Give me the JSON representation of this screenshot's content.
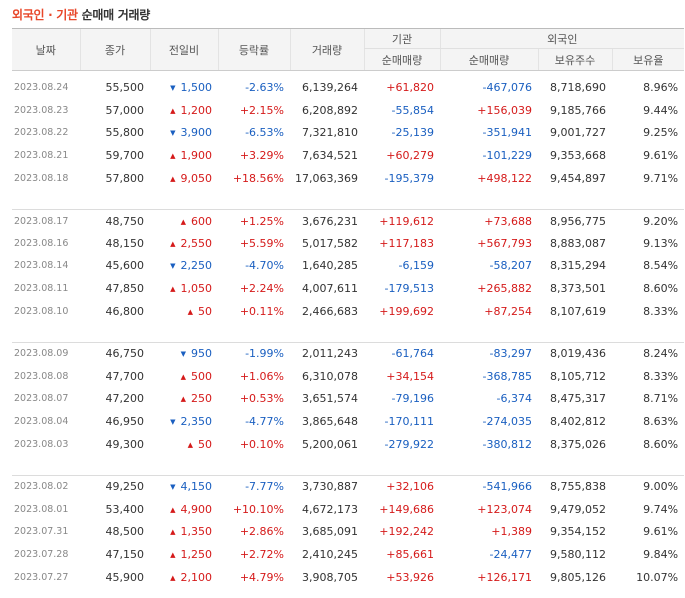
{
  "title": {
    "part1": "외국인",
    "sep": "·",
    "part2": "기관",
    "rest": "순매매 거래량"
  },
  "headers": {
    "date": "날짜",
    "close": "종가",
    "change": "전일비",
    "rate": "등락률",
    "volume": "거래량",
    "inst_group": "기관",
    "inst_net": "순매매량",
    "foreign_group": "외국인",
    "foreign_net": "순매매량",
    "foreign_hold": "보유주수",
    "foreign_ratio": "보유율"
  },
  "colors": {
    "up": "#d51a1a",
    "down": "#1a5fc0",
    "accent": "#e8472a"
  },
  "groups": [
    {
      "rows": [
        {
          "date": "2023.08.24",
          "close": "55,500",
          "dir": "down",
          "change": "1,500",
          "rate": "-2.63%",
          "volume": "6,139,264",
          "inst": "+61,820",
          "foreign": "-467,076",
          "hold": "8,718,690",
          "ratio": "8.96%"
        },
        {
          "date": "2023.08.23",
          "close": "57,000",
          "dir": "up",
          "change": "1,200",
          "rate": "+2.15%",
          "volume": "6,208,892",
          "inst": "-55,854",
          "foreign": "+156,039",
          "hold": "9,185,766",
          "ratio": "9.44%"
        },
        {
          "date": "2023.08.22",
          "close": "55,800",
          "dir": "down",
          "change": "3,900",
          "rate": "-6.53%",
          "volume": "7,321,810",
          "inst": "-25,139",
          "foreign": "-351,941",
          "hold": "9,001,727",
          "ratio": "9.25%"
        },
        {
          "date": "2023.08.21",
          "close": "59,700",
          "dir": "up",
          "change": "1,900",
          "rate": "+3.29%",
          "volume": "7,634,521",
          "inst": "+60,279",
          "foreign": "-101,229",
          "hold": "9,353,668",
          "ratio": "9.61%"
        },
        {
          "date": "2023.08.18",
          "close": "57,800",
          "dir": "up",
          "change": "9,050",
          "rate": "+18.56%",
          "volume": "17,063,369",
          "inst": "-195,379",
          "foreign": "+498,122",
          "hold": "9,454,897",
          "ratio": "9.71%"
        }
      ]
    },
    {
      "rows": [
        {
          "date": "2023.08.17",
          "close": "48,750",
          "dir": "up",
          "change": "600",
          "rate": "+1.25%",
          "volume": "3,676,231",
          "inst": "+119,612",
          "foreign": "+73,688",
          "hold": "8,956,775",
          "ratio": "9.20%"
        },
        {
          "date": "2023.08.16",
          "close": "48,150",
          "dir": "up",
          "change": "2,550",
          "rate": "+5.59%",
          "volume": "5,017,582",
          "inst": "+117,183",
          "foreign": "+567,793",
          "hold": "8,883,087",
          "ratio": "9.13%"
        },
        {
          "date": "2023.08.14",
          "close": "45,600",
          "dir": "down",
          "change": "2,250",
          "rate": "-4.70%",
          "volume": "1,640,285",
          "inst": "-6,159",
          "foreign": "-58,207",
          "hold": "8,315,294",
          "ratio": "8.54%"
        },
        {
          "date": "2023.08.11",
          "close": "47,850",
          "dir": "up",
          "change": "1,050",
          "rate": "+2.24%",
          "volume": "4,007,611",
          "inst": "-179,513",
          "foreign": "+265,882",
          "hold": "8,373,501",
          "ratio": "8.60%"
        },
        {
          "date": "2023.08.10",
          "close": "46,800",
          "dir": "up",
          "change": "50",
          "rate": "+0.11%",
          "volume": "2,466,683",
          "inst": "+199,692",
          "foreign": "+87,254",
          "hold": "8,107,619",
          "ratio": "8.33%"
        }
      ]
    },
    {
      "rows": [
        {
          "date": "2023.08.09",
          "close": "46,750",
          "dir": "down",
          "change": "950",
          "rate": "-1.99%",
          "volume": "2,011,243",
          "inst": "-61,764",
          "foreign": "-83,297",
          "hold": "8,019,436",
          "ratio": "8.24%"
        },
        {
          "date": "2023.08.08",
          "close": "47,700",
          "dir": "up",
          "change": "500",
          "rate": "+1.06%",
          "volume": "6,310,078",
          "inst": "+34,154",
          "foreign": "-368,785",
          "hold": "8,105,712",
          "ratio": "8.33%"
        },
        {
          "date": "2023.08.07",
          "close": "47,200",
          "dir": "up",
          "change": "250",
          "rate": "+0.53%",
          "volume": "3,651,574",
          "inst": "-79,196",
          "foreign": "-6,374",
          "hold": "8,475,317",
          "ratio": "8.71%"
        },
        {
          "date": "2023.08.04",
          "close": "46,950",
          "dir": "down",
          "change": "2,350",
          "rate": "-4.77%",
          "volume": "3,865,648",
          "inst": "-170,111",
          "foreign": "-274,035",
          "hold": "8,402,812",
          "ratio": "8.63%"
        },
        {
          "date": "2023.08.03",
          "close": "49,300",
          "dir": "up",
          "change": "50",
          "rate": "+0.10%",
          "volume": "5,200,061",
          "inst": "-279,922",
          "foreign": "-380,812",
          "hold": "8,375,026",
          "ratio": "8.60%"
        }
      ]
    },
    {
      "rows": [
        {
          "date": "2023.08.02",
          "close": "49,250",
          "dir": "down",
          "change": "4,150",
          "rate": "-7.77%",
          "volume": "3,730,887",
          "inst": "+32,106",
          "foreign": "-541,966",
          "hold": "8,755,838",
          "ratio": "9.00%"
        },
        {
          "date": "2023.08.01",
          "close": "53,400",
          "dir": "up",
          "change": "4,900",
          "rate": "+10.10%",
          "volume": "4,672,173",
          "inst": "+149,686",
          "foreign": "+123,074",
          "hold": "9,479,052",
          "ratio": "9.74%"
        },
        {
          "date": "2023.07.31",
          "close": "48,500",
          "dir": "up",
          "change": "1,350",
          "rate": "+2.86%",
          "volume": "3,685,091",
          "inst": "+192,242",
          "foreign": "+1,389",
          "hold": "9,354,152",
          "ratio": "9.61%"
        },
        {
          "date": "2023.07.28",
          "close": "47,150",
          "dir": "up",
          "change": "1,250",
          "rate": "+2.72%",
          "volume": "2,410,245",
          "inst": "+85,661",
          "foreign": "-24,477",
          "hold": "9,580,112",
          "ratio": "9.84%"
        },
        {
          "date": "2023.07.27",
          "close": "45,900",
          "dir": "up",
          "change": "2,100",
          "rate": "+4.79%",
          "volume": "3,908,705",
          "inst": "+53,926",
          "foreign": "+126,171",
          "hold": "9,805,126",
          "ratio": "10.07%"
        }
      ]
    }
  ]
}
